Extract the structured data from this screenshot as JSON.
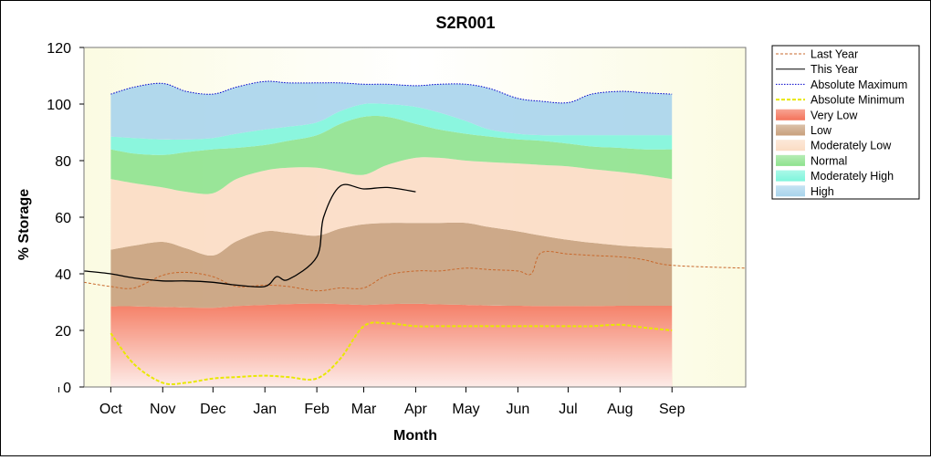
{
  "chart_data": {
    "type": "area",
    "title": "S2R001",
    "xlabel": "Month",
    "ylabel": "% Storage",
    "ylim": [
      0,
      120
    ],
    "yticks": [
      0,
      20,
      40,
      60,
      80,
      100,
      120
    ],
    "grid": false,
    "legend_position": "right",
    "x_domain": [
      "Sep-15",
      "Oct-15"
    ],
    "categories": [
      "Oct",
      "Nov",
      "Dec",
      "Jan",
      "Feb",
      "Mar",
      "Apr",
      "May",
      "Jun",
      "Jul",
      "Aug",
      "Sep"
    ],
    "band_x": [
      "Oct",
      "Oct-15",
      "Nov",
      "Nov-15",
      "Dec",
      "Dec-15",
      "Jan",
      "Jan-15",
      "Feb",
      "Feb-15",
      "Mar",
      "Mar-15",
      "Apr",
      "Apr-15",
      "May",
      "May-15",
      "Jun",
      "Jun-15",
      "Jul",
      "Jul-15",
      "Aug",
      "Aug-15",
      "Sep"
    ],
    "bands": [
      {
        "name": "Very Low",
        "color": "#f4735a",
        "lower": [
          0,
          0,
          0,
          0,
          0,
          0,
          0,
          0,
          0,
          0,
          0,
          0,
          0,
          0,
          0,
          0,
          0,
          0,
          0,
          0,
          0,
          0,
          0
        ],
        "upper": [
          28.5,
          28.5,
          28.3,
          28.1,
          28.0,
          28.6,
          29.0,
          29.3,
          29.5,
          29.3,
          29.0,
          29.3,
          29.4,
          29.2,
          29.0,
          28.8,
          28.7,
          28.6,
          28.6,
          28.6,
          28.7,
          28.7,
          28.7
        ]
      },
      {
        "name": "Low",
        "color": "#c8a07c",
        "lower": [
          28.5,
          28.5,
          28.3,
          28.1,
          28.0,
          28.6,
          29.0,
          29.3,
          29.5,
          29.3,
          29.0,
          29.3,
          29.4,
          29.2,
          29.0,
          28.8,
          28.7,
          28.6,
          28.6,
          28.6,
          28.7,
          28.7,
          28.7
        ],
        "upper": [
          48.5,
          50.0,
          51.3,
          49.0,
          46.5,
          51.5,
          55.0,
          54.5,
          53.5,
          56.0,
          57.5,
          58.0,
          58.0,
          58.0,
          58.0,
          56.5,
          55.0,
          53.5,
          52.0,
          51.0,
          50.0,
          49.5,
          49.0
        ]
      },
      {
        "name": "Moderately Low",
        "color": "#fbdcc4",
        "lower": [
          48.5,
          50.0,
          51.3,
          49.0,
          46.5,
          51.5,
          55.0,
          54.5,
          53.5,
          56.0,
          57.5,
          58.0,
          58.0,
          58.0,
          58.0,
          56.5,
          55.0,
          53.5,
          52.0,
          51.0,
          50.0,
          49.5,
          49.0
        ],
        "upper": [
          73.5,
          72.0,
          70.5,
          69.0,
          68.5,
          73.5,
          76.5,
          77.5,
          77.5,
          76.0,
          75.0,
          78.5,
          81.0,
          81.0,
          80.0,
          79.5,
          79.0,
          78.5,
          78.0,
          77.0,
          76.0,
          75.0,
          73.5
        ]
      },
      {
        "name": "Normal",
        "color": "#8ee28e",
        "lower": [
          73.5,
          72.0,
          70.5,
          69.0,
          68.5,
          73.5,
          76.5,
          77.5,
          77.5,
          76.0,
          75.0,
          78.5,
          81.0,
          81.0,
          80.0,
          79.5,
          79.0,
          78.5,
          78.0,
          77.0,
          76.0,
          75.0,
          73.5
        ],
        "upper": [
          84.0,
          82.5,
          82.0,
          83.0,
          84.0,
          84.5,
          85.5,
          87.0,
          89.0,
          93.0,
          95.5,
          95.5,
          93.0,
          91.0,
          89.5,
          88.5,
          87.5,
          87.0,
          86.0,
          85.0,
          84.5,
          84.0,
          84.0
        ]
      },
      {
        "name": "Moderately High",
        "color": "#7ef5dc",
        "lower": [
          84.0,
          82.5,
          82.0,
          83.0,
          84.0,
          84.5,
          85.5,
          87.0,
          89.0,
          93.0,
          95.5,
          95.5,
          93.0,
          91.0,
          89.5,
          88.5,
          87.5,
          87.0,
          86.0,
          85.0,
          84.5,
          84.0,
          84.0
        ],
        "upper": [
          88.5,
          88.0,
          87.5,
          87.5,
          88.0,
          89.5,
          91.0,
          92.0,
          93.5,
          97.5,
          100.0,
          100.0,
          99.0,
          97.0,
          94.0,
          91.0,
          89.5,
          89.0,
          89.0,
          89.0,
          89.0,
          89.0,
          89.0
        ]
      },
      {
        "name": "High",
        "color": "#a8d4ec",
        "lower": [
          88.5,
          88.0,
          87.5,
          87.5,
          88.0,
          89.5,
          91.0,
          92.0,
          93.5,
          97.5,
          100.0,
          100.0,
          99.0,
          97.0,
          94.0,
          91.0,
          89.5,
          89.0,
          89.0,
          89.0,
          89.0,
          89.0,
          89.0
        ],
        "upper": [
          103.5,
          106.0,
          107.3,
          104.5,
          103.5,
          106.0,
          108.0,
          107.5,
          107.5,
          107.5,
          107.0,
          107.0,
          106.5,
          107.0,
          107.0,
          105.5,
          102.0,
          101.0,
          100.5,
          103.5,
          104.5,
          104.0,
          103.5
        ]
      }
    ],
    "series": [
      {
        "name": "Last Year",
        "color": "#c8682c",
        "style": "dashed",
        "x": [
          "Sep-15",
          "Oct",
          "Oct-15",
          "Nov",
          "Nov-15",
          "Dec",
          "Dec-15",
          "Jan",
          "Jan-15",
          "Feb",
          "Feb-15",
          "Mar",
          "Mar-15",
          "Apr",
          "Apr-15",
          "May",
          "May-15",
          "Jun",
          "Jun-9",
          "Jun-15",
          "Jul",
          "Jul-15",
          "Aug",
          "Aug-15",
          "Sep",
          "Oct-15"
        ],
        "y": [
          37.0,
          35.5,
          35.0,
          39.5,
          40.5,
          39.0,
          35.5,
          36.0,
          35.5,
          34.0,
          35.0,
          35.0,
          39.5,
          41.0,
          41.0,
          42.0,
          41.5,
          41.0,
          40.0,
          47.5,
          47.0,
          46.5,
          46.0,
          45.0,
          43.0,
          42.0
        ]
      },
      {
        "name": "This Year",
        "color": "#000000",
        "style": "solid",
        "x": [
          "Sep-15",
          "Oct",
          "Oct-15",
          "Nov",
          "Nov-15",
          "Dec",
          "Dec-15",
          "Jan",
          "Jan-8",
          "Jan-15",
          "Feb",
          "Feb-5",
          "Feb-15",
          "Mar",
          "Mar-15",
          "Apr"
        ],
        "y": [
          41.0,
          40.0,
          38.5,
          37.5,
          37.5,
          37.0,
          36.0,
          35.5,
          39.0,
          38.0,
          46.0,
          60.0,
          71.0,
          70.0,
          70.5,
          69.0
        ]
      },
      {
        "name": "Absolute Maximum",
        "color": "#0000cc",
        "style": "dotted",
        "x": [
          "Oct",
          "Oct-15",
          "Nov",
          "Nov-15",
          "Dec",
          "Dec-15",
          "Jan",
          "Jan-15",
          "Feb",
          "Feb-15",
          "Mar",
          "Mar-15",
          "Apr",
          "Apr-15",
          "May",
          "May-15",
          "Jun",
          "Jun-15",
          "Jul",
          "Jul-15",
          "Aug",
          "Aug-15",
          "Sep"
        ],
        "y": [
          103.5,
          106.0,
          107.3,
          104.5,
          103.5,
          106.0,
          108.0,
          107.5,
          107.5,
          107.5,
          107.0,
          107.0,
          106.5,
          107.0,
          107.0,
          105.5,
          102.0,
          101.0,
          100.5,
          103.5,
          104.5,
          104.0,
          103.5
        ]
      },
      {
        "name": "Absolute Minimum",
        "color": "#e8e800",
        "style": "dashed",
        "x": [
          "Oct",
          "Oct-15",
          "Nov",
          "Nov-15",
          "Dec",
          "Dec-15",
          "Jan",
          "Jan-15",
          "Feb",
          "Feb-15",
          "Mar",
          "Mar-15",
          "Apr",
          "Apr-15",
          "May",
          "May-15",
          "Jun",
          "Jun-15",
          "Jul",
          "Jul-15",
          "Aug",
          "Aug-15",
          "Sep"
        ],
        "y": [
          19.0,
          8.0,
          1.5,
          1.5,
          3.0,
          3.5,
          4.0,
          3.5,
          3.0,
          10.0,
          21.5,
          22.5,
          21.5,
          21.5,
          21.5,
          21.5,
          21.5,
          21.5,
          21.5,
          21.5,
          22.0,
          21.0,
          20.0
        ]
      }
    ],
    "legend": [
      "Last Year",
      "This Year",
      "Absolute Maximum",
      "Absolute Minimum",
      "Very Low",
      "Low",
      "Moderately Low",
      "Normal",
      "Moderately High",
      "High"
    ]
  }
}
